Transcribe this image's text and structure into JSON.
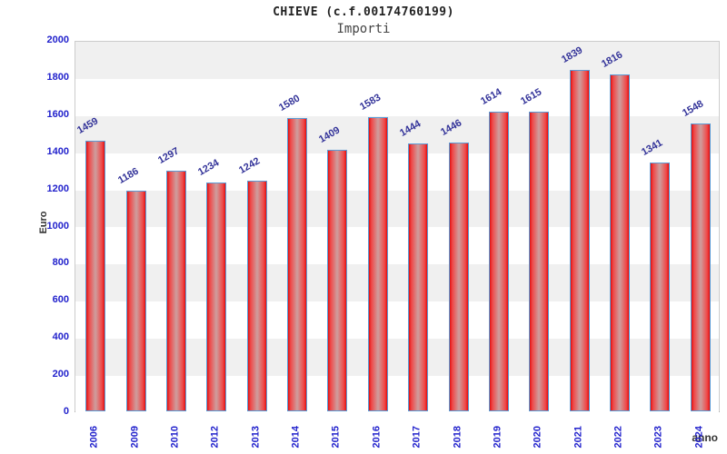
{
  "header": {
    "title": "CHIEVE (c.f.00174760199)",
    "subtitle": "Importi"
  },
  "chart_data": {
    "type": "bar",
    "title": "CHIEVE (c.f.00174760199)",
    "subtitle": "Importi",
    "categories": [
      "2006",
      "2009",
      "2010",
      "2012",
      "2013",
      "2014",
      "2015",
      "2016",
      "2017",
      "2018",
      "2019",
      "2020",
      "2021",
      "2022",
      "2023",
      "2024"
    ],
    "values": [
      1459,
      1186,
      1297,
      1234,
      1242,
      1580,
      1409,
      1583,
      1444,
      1446,
      1614,
      1615,
      1839,
      1816,
      1341,
      1548
    ],
    "xlabel": "anno",
    "ylabel": "Euro",
    "ylim": [
      0,
      2000
    ],
    "ytick_step": 200,
    "yticks": [
      "0",
      "200",
      "400",
      "600",
      "800",
      "1000",
      "1200",
      "1400",
      "1600",
      "1800",
      "2000"
    ],
    "grid": "alternating-horizontal-bands",
    "legend": "none",
    "bar_value_labels": true,
    "colors": {
      "bar_edge": "#e01010",
      "bar_mid": "#f04848",
      "bar_center": "#cf9a9a",
      "bar_border": "#5b9bd5",
      "tick_label": "#2222cc",
      "value_label": "#333399",
      "axis_title": "#333333",
      "band_gray": "#f0f0f0",
      "band_white": "#ffffff",
      "plot_border": "#cccccc",
      "title_color": "#222222",
      "subtitle_color": "#444444"
    }
  }
}
